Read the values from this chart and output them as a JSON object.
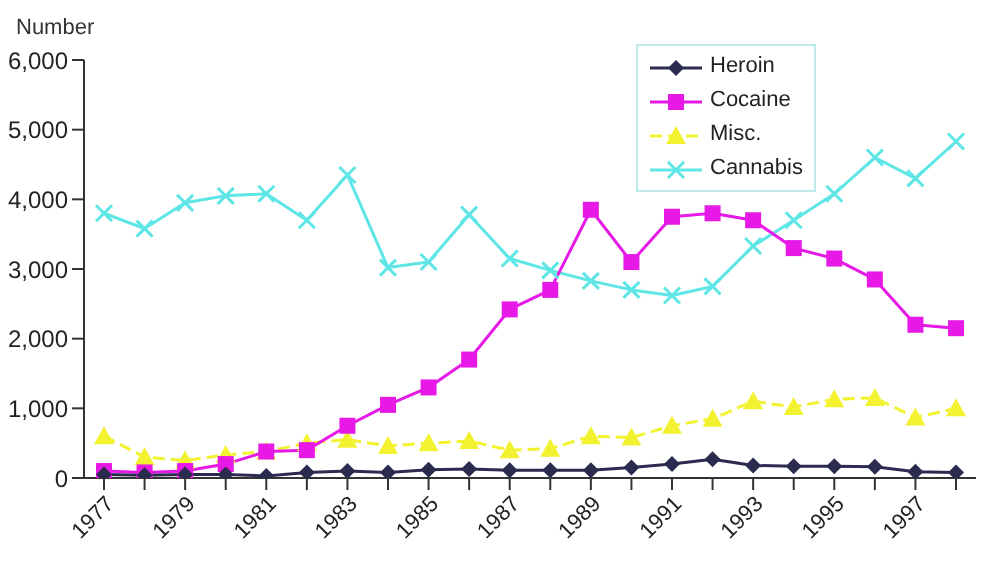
{
  "chart_data": {
    "type": "line",
    "ylabel": "Number",
    "categories": [
      "1977",
      null,
      "1979",
      null,
      "1981",
      null,
      "1983",
      null,
      "1985",
      null,
      "1987",
      null,
      "1989",
      null,
      "1991",
      null,
      "1993",
      null,
      "1995",
      null,
      "1997",
      null
    ],
    "series": [
      {
        "name": "Heroin",
        "color": "#2b2b4f",
        "marker": "diamond",
        "values": [
          50,
          40,
          50,
          50,
          30,
          80,
          100,
          80,
          120,
          130,
          110,
          110,
          110,
          150,
          200,
          270,
          180,
          170,
          170,
          160,
          90,
          80
        ]
      },
      {
        "name": "Cocaine",
        "color": "#e619e6",
        "marker": "square",
        "values": [
          100,
          80,
          100,
          200,
          380,
          400,
          750,
          1050,
          1300,
          1700,
          2420,
          2700,
          3850,
          3100,
          3750,
          3800,
          3700,
          3300,
          3150,
          2850,
          2200,
          2150
        ]
      },
      {
        "name": "Misc.",
        "color": "#f2f230",
        "marker": "triangle",
        "line_style": "dashed",
        "values": [
          600,
          300,
          250,
          330,
          380,
          500,
          550,
          460,
          500,
          530,
          400,
          420,
          600,
          580,
          750,
          850,
          1100,
          1020,
          1130,
          1150,
          870,
          1000
        ]
      },
      {
        "name": "Cannabis",
        "color": "#5ee6e6",
        "marker": "cross",
        "values": [
          3800,
          3580,
          3950,
          4050,
          4080,
          3700,
          4350,
          3020,
          3100,
          3780,
          3150,
          2980,
          2830,
          2700,
          2620,
          2750,
          3330,
          3700,
          4080,
          4600,
          4300,
          4830
        ]
      }
    ],
    "ylim": [
      0,
      6000
    ],
    "yticks": [
      0,
      {
        "value": 1000,
        "label": "1,000"
      },
      {
        "value": 2000,
        "label": "2,000"
      },
      {
        "value": 3000,
        "label": "3,000"
      },
      {
        "value": 4000,
        "label": "4,000"
      },
      {
        "value": 5000,
        "label": "5,000"
      },
      {
        "value": 6000,
        "label": "6,000"
      }
    ],
    "grid": false,
    "legend": "top"
  }
}
